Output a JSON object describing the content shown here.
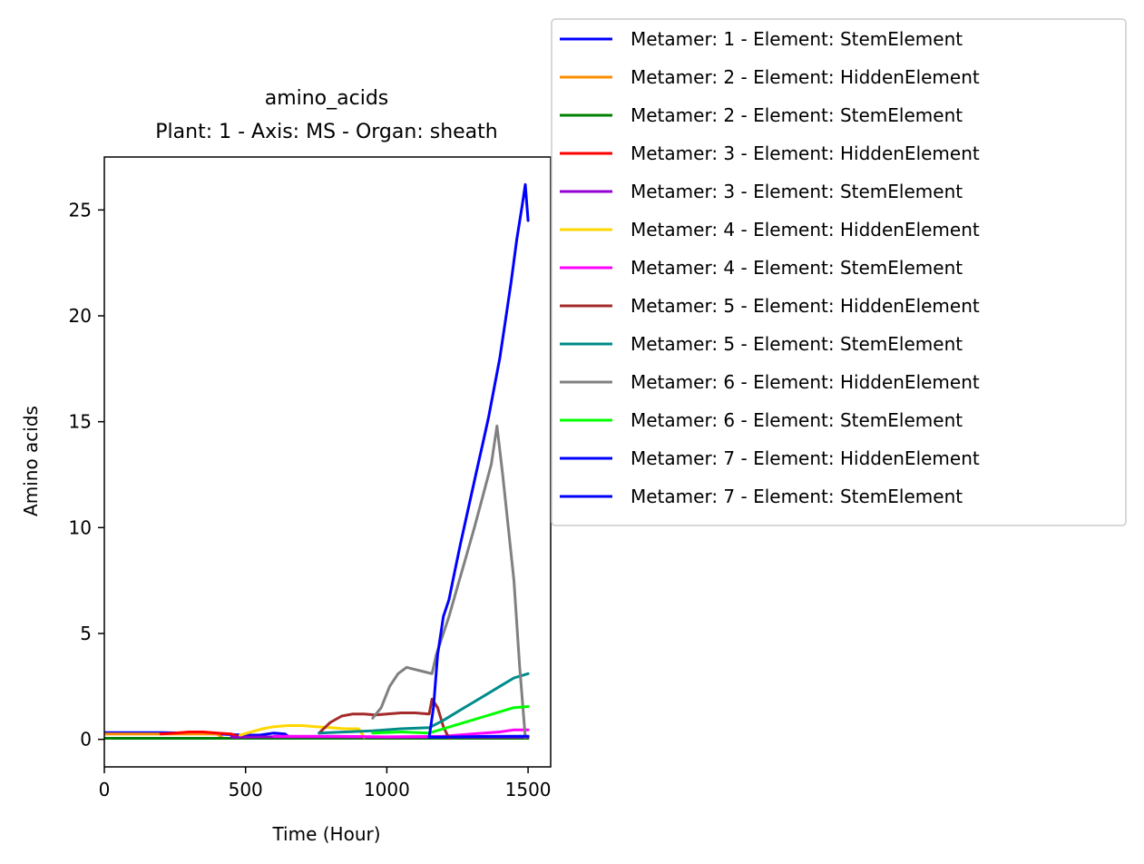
{
  "chart_data": {
    "type": "line",
    "title": "amino_acids",
    "subtitle": "Plant: 1 - Axis: MS - Organ: sheath",
    "xlabel": "Time (Hour)",
    "ylabel": "Amino acids",
    "xlim": [
      0,
      1580
    ],
    "ylim": [
      -1.3,
      27.5
    ],
    "xticks": [
      0,
      500,
      1000,
      1500
    ],
    "yticks": [
      0,
      5,
      10,
      15,
      20,
      25
    ],
    "legend_position": "outside-top-right",
    "series": [
      {
        "name": "Metamer: 1 - Element: StemElement",
        "color": "#0000ff",
        "x": [
          0,
          100,
          200,
          300,
          400,
          500,
          550,
          600,
          640,
          660
        ],
        "y": [
          0.32,
          0.32,
          0.32,
          0.3,
          0.25,
          0.2,
          0.2,
          0.3,
          0.25,
          0.05
        ]
      },
      {
        "name": "Metamer: 2 - Element: HiddenElement",
        "color": "#ff8c00",
        "x": [
          0,
          100,
          200,
          300,
          400,
          420
        ],
        "y": [
          0.25,
          0.25,
          0.25,
          0.25,
          0.25,
          0.05
        ]
      },
      {
        "name": "Metamer: 2 - Element: StemElement",
        "color": "#008000",
        "x": [
          0,
          300,
          600,
          900,
          1200,
          1500
        ],
        "y": [
          0.05,
          0.05,
          0.05,
          0.05,
          0.05,
          0.05
        ]
      },
      {
        "name": "Metamer: 3 - Element: HiddenElement",
        "color": "#ff0000",
        "x": [
          200,
          250,
          300,
          350,
          400,
          450,
          480
        ],
        "y": [
          0.25,
          0.3,
          0.35,
          0.35,
          0.3,
          0.25,
          0.1
        ]
      },
      {
        "name": "Metamer: 3 - Element: StemElement",
        "color": "#9400d3",
        "x": [
          450,
          600,
          800,
          1000,
          1200,
          1400,
          1500
        ],
        "y": [
          0.1,
          0.12,
          0.12,
          0.1,
          0.1,
          0.1,
          0.1
        ]
      },
      {
        "name": "Metamer: 4 - Element: HiddenElement",
        "color": "#ffd700",
        "x": [
          480,
          520,
          560,
          600,
          650,
          700,
          750,
          800,
          850,
          900,
          920
        ],
        "y": [
          0.2,
          0.35,
          0.5,
          0.6,
          0.65,
          0.65,
          0.6,
          0.55,
          0.5,
          0.5,
          0.1
        ]
      },
      {
        "name": "Metamer: 4 - Element: StemElement",
        "color": "#ff00ff",
        "x": [
          600,
          800,
          1000,
          1200,
          1300,
          1400,
          1450,
          1500
        ],
        "y": [
          0.15,
          0.15,
          0.12,
          0.15,
          0.25,
          0.35,
          0.45,
          0.45
        ]
      },
      {
        "name": "Metamer: 5 - Element: HiddenElement",
        "color": "#a52a2a",
        "x": [
          760,
          800,
          840,
          880,
          920,
          960,
          1000,
          1050,
          1100,
          1150,
          1160,
          1180,
          1200,
          1220
        ],
        "y": [
          0.3,
          0.8,
          1.1,
          1.2,
          1.2,
          1.15,
          1.2,
          1.25,
          1.25,
          1.2,
          1.9,
          1.5,
          0.6,
          0.05
        ]
      },
      {
        "name": "Metamer: 5 - Element: StemElement",
        "color": "#008b8b",
        "x": [
          760,
          850,
          950,
          1050,
          1150,
          1200,
          1250,
          1300,
          1350,
          1400,
          1450,
          1500
        ],
        "y": [
          0.3,
          0.35,
          0.4,
          0.5,
          0.55,
          0.9,
          1.3,
          1.7,
          2.1,
          2.5,
          2.9,
          3.1
        ]
      },
      {
        "name": "Metamer: 6 - Element: HiddenElement",
        "color": "#808080",
        "x": [
          950,
          980,
          1010,
          1040,
          1070,
          1100,
          1130,
          1160,
          1175,
          1190,
          1220,
          1250,
          1280,
          1310,
          1340,
          1370,
          1390,
          1410,
          1430,
          1450,
          1470,
          1490
        ],
        "y": [
          1.0,
          1.5,
          2.5,
          3.1,
          3.4,
          3.3,
          3.2,
          3.1,
          4.0,
          4.6,
          5.8,
          7.2,
          8.6,
          10.0,
          11.5,
          13.0,
          14.8,
          12.5,
          10.0,
          7.5,
          3.5,
          0.1
        ]
      },
      {
        "name": "Metamer: 6 - Element: StemElement",
        "color": "#00ff00",
        "x": [
          950,
          1050,
          1150,
          1200,
          1250,
          1300,
          1350,
          1400,
          1450,
          1500
        ],
        "y": [
          0.3,
          0.35,
          0.3,
          0.5,
          0.7,
          0.9,
          1.1,
          1.3,
          1.5,
          1.55
        ]
      },
      {
        "name": "Metamer: 7 - Element: HiddenElement",
        "color": "#0000ff",
        "x": [
          1150,
          1165,
          1180,
          1200,
          1220,
          1240,
          1260,
          1280,
          1300,
          1320,
          1340,
          1360,
          1380,
          1400,
          1420,
          1440,
          1460,
          1480,
          1490,
          1500
        ],
        "y": [
          0.1,
          1.5,
          4.0,
          5.8,
          6.6,
          7.9,
          9.2,
          10.4,
          11.6,
          12.8,
          14.0,
          15.2,
          16.6,
          18.0,
          19.8,
          21.6,
          23.6,
          25.3,
          26.2,
          24.5
        ]
      },
      {
        "name": "Metamer: 7 - Element: StemElement",
        "color": "#0000ff",
        "x": [
          1150,
          1250,
          1350,
          1450,
          1500
        ],
        "y": [
          0.1,
          0.12,
          0.14,
          0.15,
          0.15
        ]
      }
    ]
  }
}
